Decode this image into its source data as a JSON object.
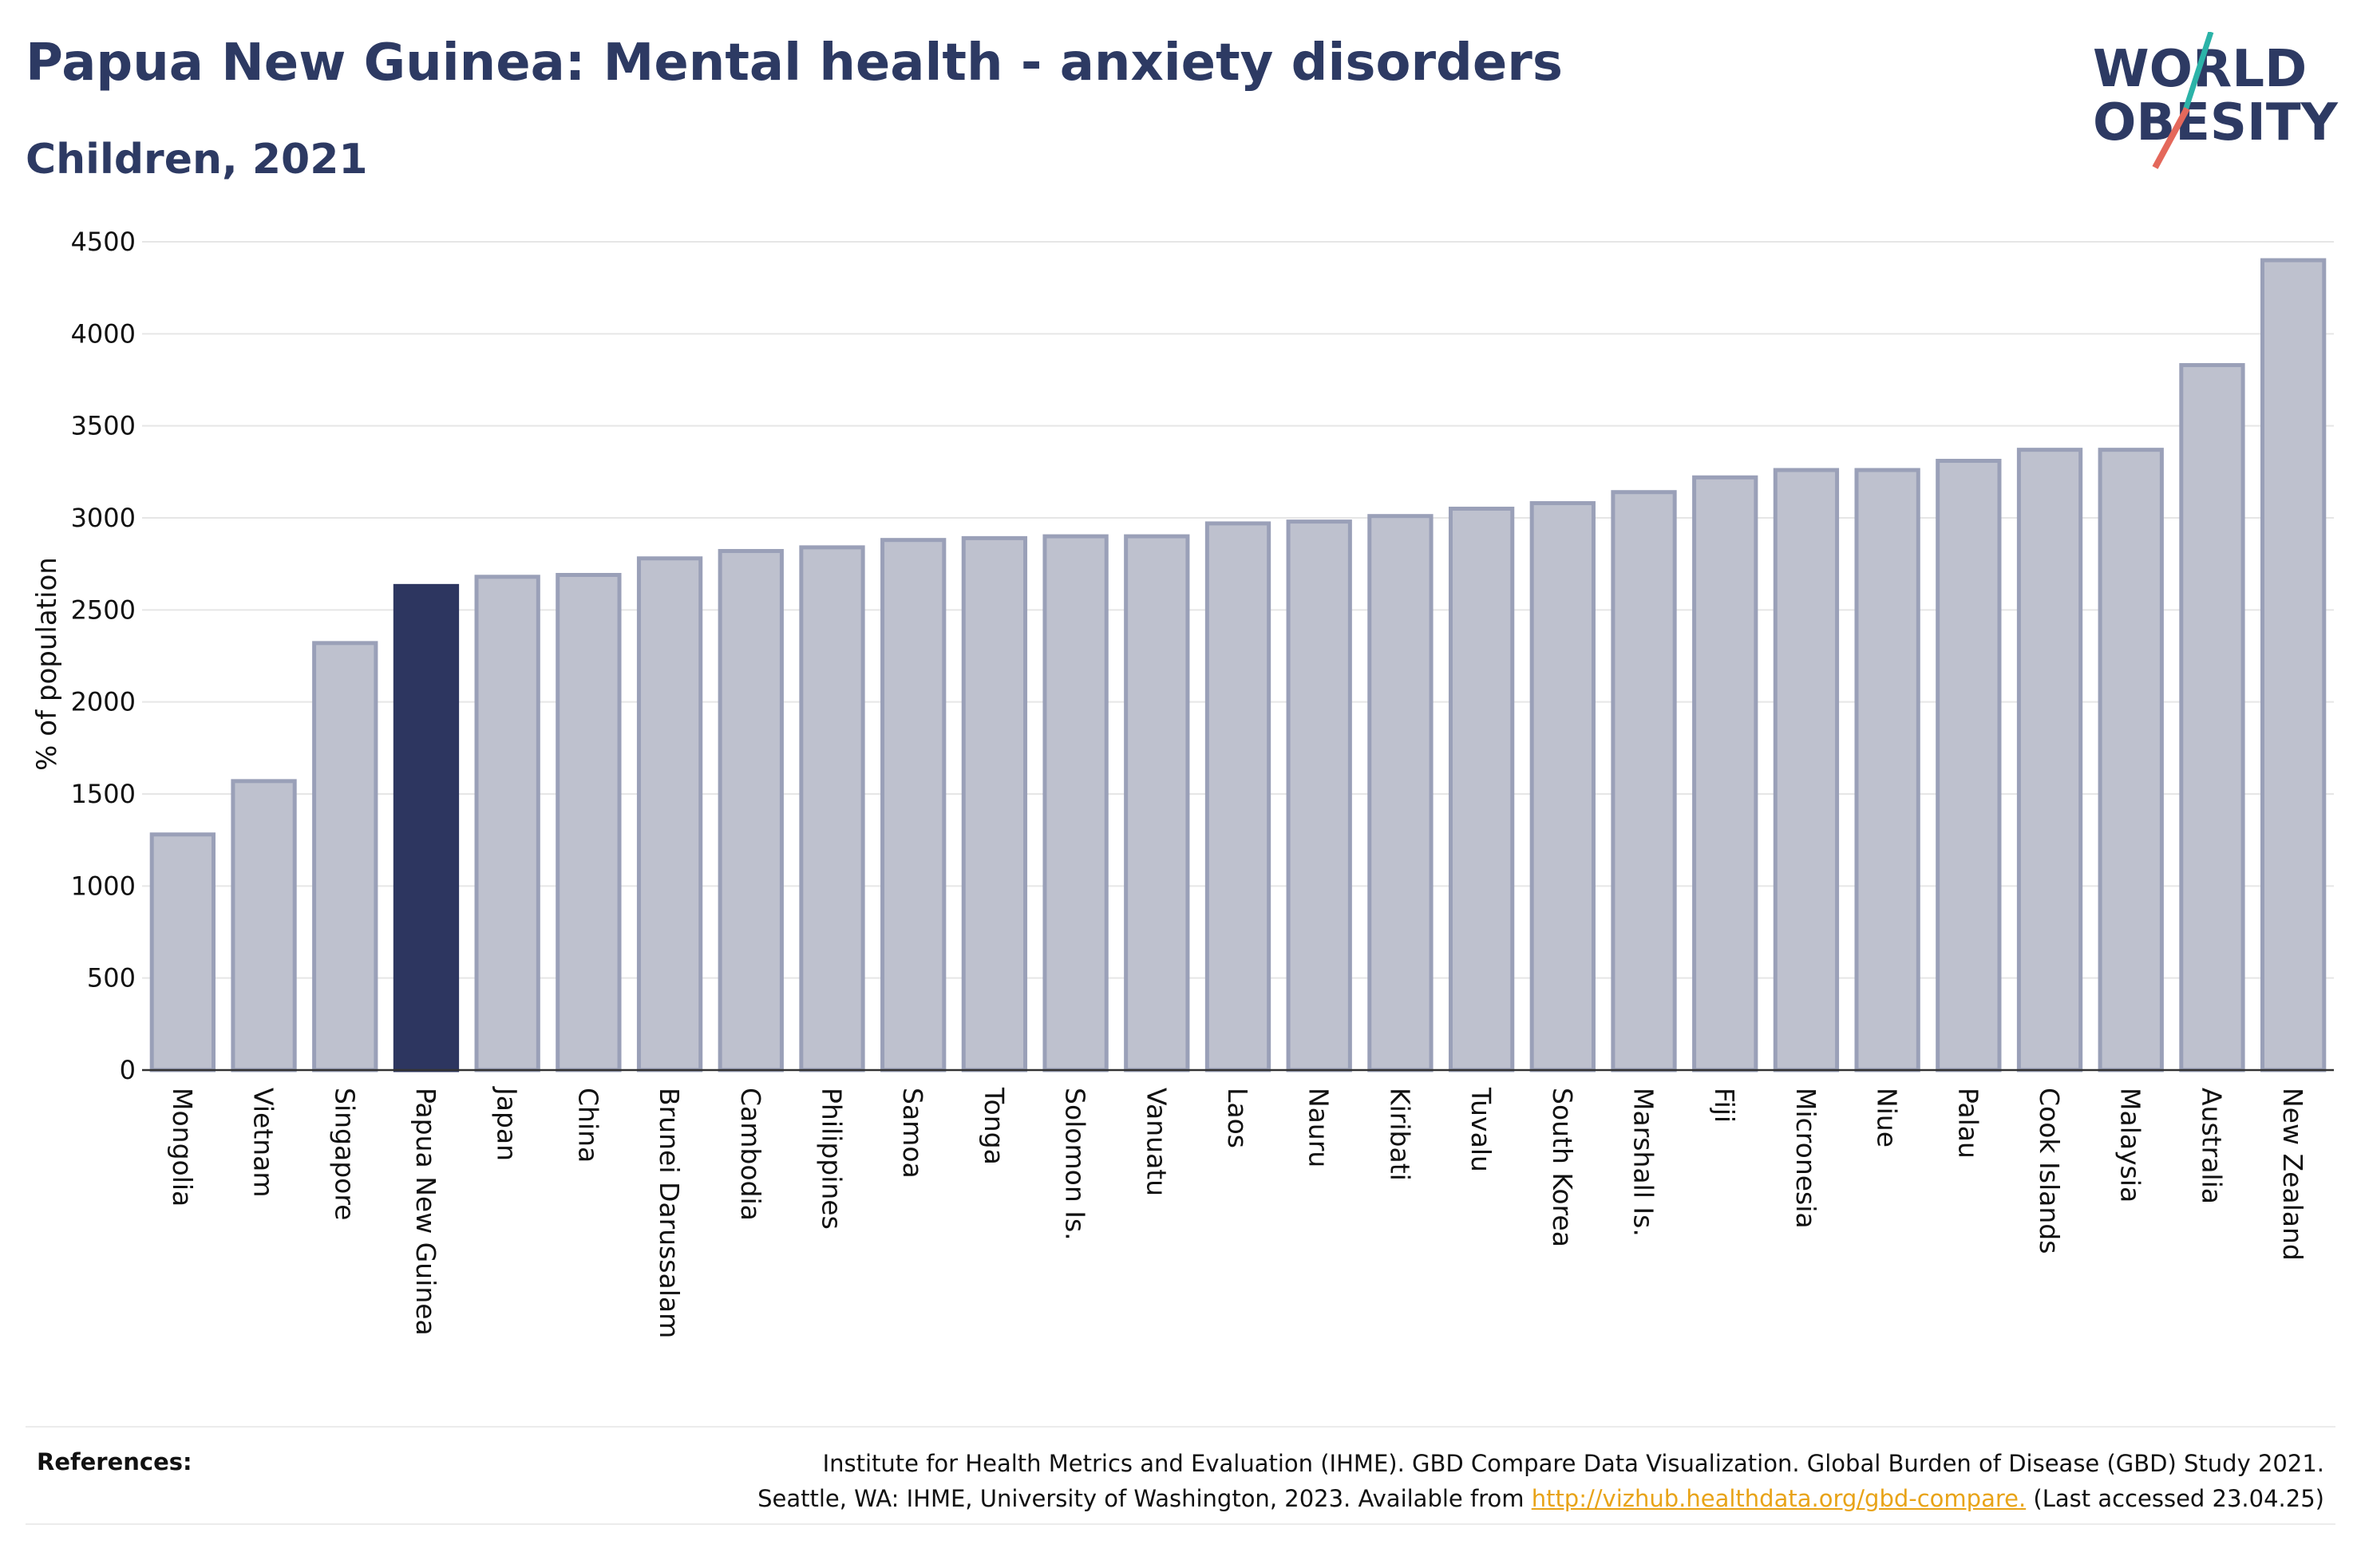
{
  "header": {
    "title": "Papua New Guinea: Mental health - anxiety disorders",
    "subtitle": "Children, 2021"
  },
  "logo": {
    "line1": "WORLD",
    "line2": "OBESITY",
    "colors": {
      "text": "#2d3a63",
      "slash_teal": "#2bb3a8",
      "slash_red": "#e4685b"
    }
  },
  "chart_data": {
    "type": "bar",
    "title": "Papua New Guinea: Mental health - anxiety disorders",
    "subtitle": "Children, 2021",
    "xlabel": "",
    "ylabel": "% of population",
    "ylim": [
      0,
      4500
    ],
    "yticks": [
      0,
      500,
      1000,
      1500,
      2000,
      2500,
      3000,
      3500,
      4000,
      4500
    ],
    "grid": true,
    "highlight": "Papua New Guinea",
    "colors": {
      "default": "#bec1ce",
      "default_edge": "#9aa0b8",
      "highlight": "#2d3660"
    },
    "categories": [
      "Mongolia",
      "Vietnam",
      "Singapore",
      "Papua New Guinea",
      "Japan",
      "China",
      "Brunei Darussalam",
      "Cambodia",
      "Philippines",
      "Samoa",
      "Tonga",
      "Solomon Is.",
      "Vanuatu",
      "Laos",
      "Nauru",
      "Kiribati",
      "Tuvalu",
      "South Korea",
      "Marshall Is.",
      "Fiji",
      "Micronesia",
      "Niue",
      "Palau",
      "Cook Islands",
      "Malaysia",
      "Australia",
      "New Zealand"
    ],
    "values": [
      1280,
      1570,
      2320,
      2630,
      2680,
      2690,
      2780,
      2820,
      2840,
      2880,
      2890,
      2900,
      2900,
      2970,
      2980,
      3010,
      3050,
      3080,
      3140,
      3220,
      3260,
      3260,
      3310,
      3370,
      3370,
      3830,
      4400
    ]
  },
  "references": {
    "label": "References:",
    "line1": "Institute for Health Metrics and Evaluation (IHME). GBD Compare Data Visualization. Global Burden of Disease (GBD) Study 2021.",
    "line2_before": "Seattle, WA: IHME, University of Washington, 2023. Available from ",
    "link": "http://vizhub.healthdata.org/gbd-compare.",
    "line2_after": " (Last accessed 23.04.25)"
  }
}
